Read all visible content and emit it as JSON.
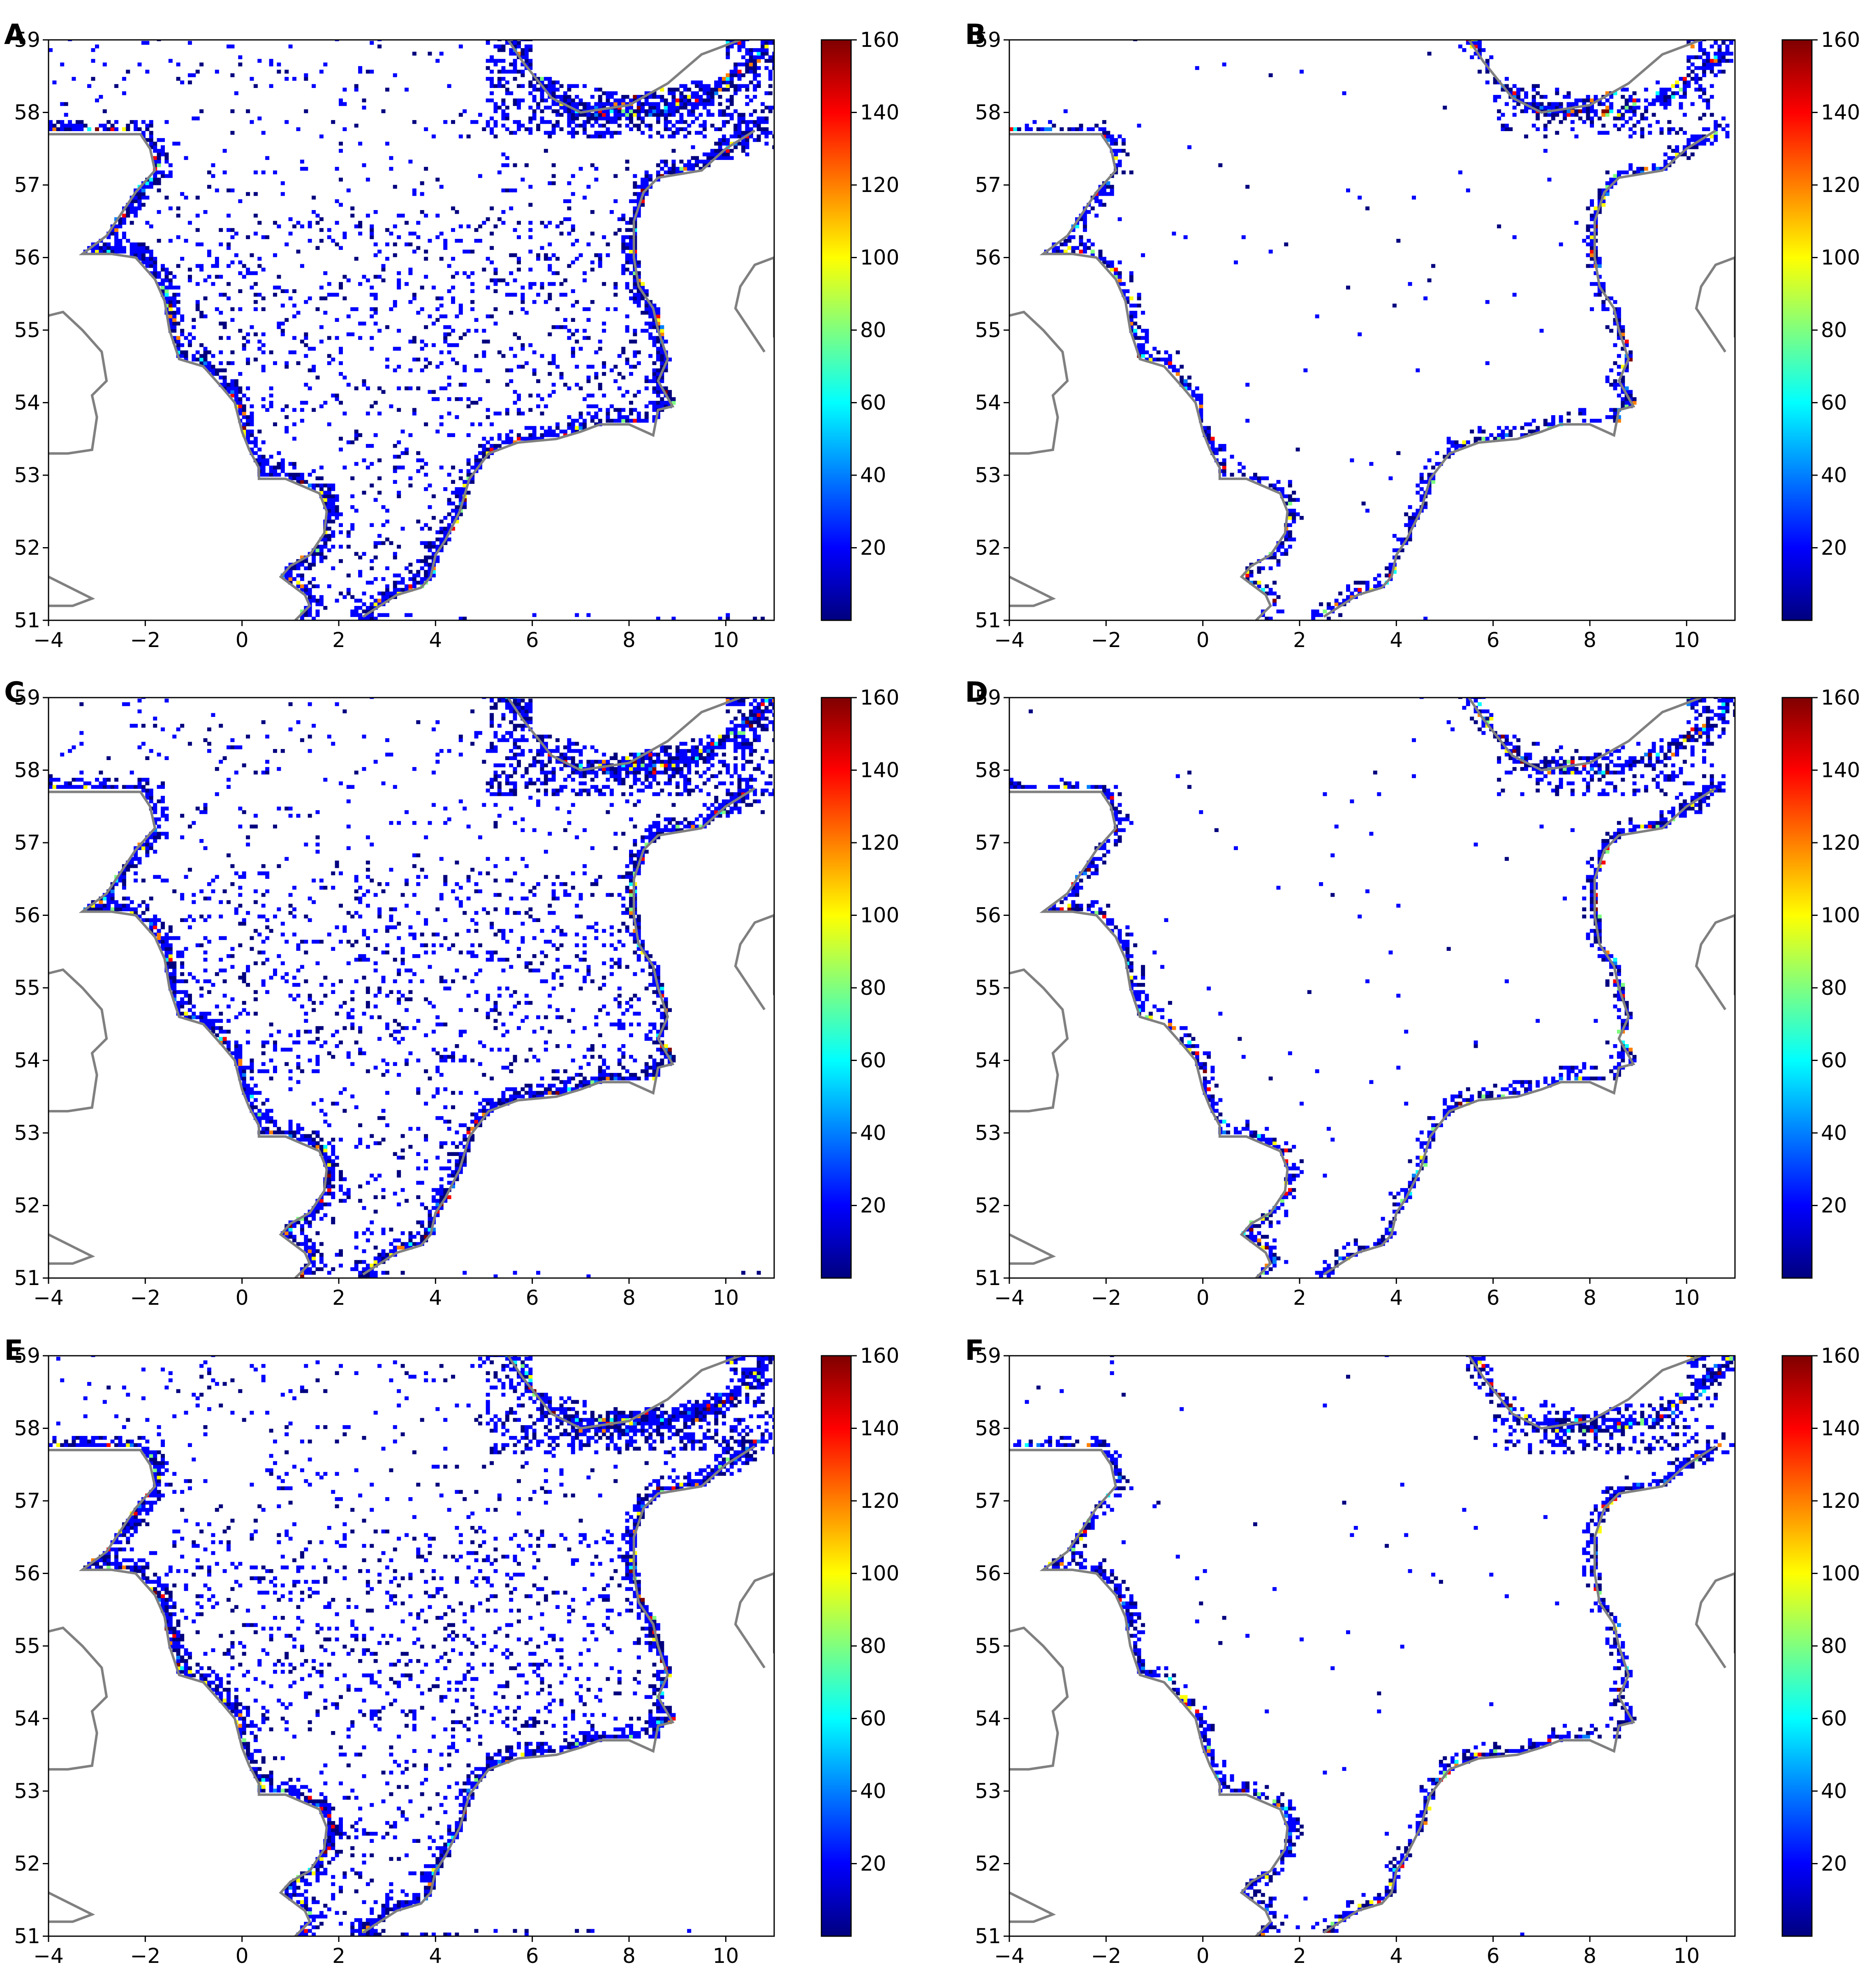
{
  "figure": {
    "panels": [
      {
        "id": "A",
        "letter": "A",
        "pattern": "wide"
      },
      {
        "id": "B",
        "letter": "B",
        "pattern": "coastal"
      },
      {
        "id": "C",
        "letter": "C",
        "pattern": "wide"
      },
      {
        "id": "D",
        "letter": "D",
        "pattern": "coastal"
      },
      {
        "id": "E",
        "letter": "E",
        "pattern": "wide"
      },
      {
        "id": "F",
        "letter": "F",
        "pattern": "coastal"
      }
    ]
  },
  "colors": {
    "coastline": "#808080",
    "colormap": [
      "#00007f",
      "#0000ff",
      "#007fff",
      "#00ffff",
      "#7fff7f",
      "#ffff00",
      "#ff7f00",
      "#ff0000",
      "#7f0000"
    ]
  },
  "chart_data": {
    "type": "heatmap",
    "xlim": [
      -4,
      11
    ],
    "ylim": [
      51,
      59
    ],
    "x_ticks": [
      "−4",
      "−2",
      "0",
      "2",
      "4",
      "6",
      "8",
      "10"
    ],
    "x_tick_values": [
      -4,
      -2,
      0,
      2,
      4,
      6,
      8,
      10
    ],
    "y_ticks": [
      "51",
      "52",
      "53",
      "54",
      "55",
      "56",
      "57",
      "58",
      "59"
    ],
    "y_tick_values": [
      51,
      52,
      53,
      54,
      55,
      56,
      57,
      58,
      59
    ],
    "colorbar_range": [
      0,
      160
    ],
    "colorbar_ticks": [
      "20",
      "40",
      "60",
      "80",
      "100",
      "120",
      "140",
      "160"
    ],
    "colorbar_tick_values": [
      20,
      40,
      60,
      80,
      100,
      120,
      140,
      160
    ],
    "coastlines": {
      "uk_east": [
        [
          -4,
          57.7
        ],
        [
          -3.0,
          57.7
        ],
        [
          -2.1,
          57.7
        ],
        [
          -1.9,
          57.5
        ],
        [
          -1.8,
          57.2
        ],
        [
          -2.2,
          56.9
        ],
        [
          -2.6,
          56.5
        ],
        [
          -2.8,
          56.3
        ],
        [
          -3.3,
          56.05
        ],
        [
          -2.7,
          56.05
        ],
        [
          -2.2,
          56.0
        ],
        [
          -1.8,
          55.7
        ],
        [
          -1.6,
          55.4
        ],
        [
          -1.5,
          55.0
        ],
        [
          -1.3,
          54.6
        ],
        [
          -0.8,
          54.5
        ],
        [
          -0.4,
          54.2
        ],
        [
          -0.15,
          54.0
        ],
        [
          0.0,
          53.6
        ],
        [
          0.15,
          53.35
        ],
        [
          0.35,
          53.1
        ],
        [
          0.35,
          52.95
        ],
        [
          0.9,
          52.95
        ],
        [
          1.6,
          52.75
        ],
        [
          1.75,
          52.5
        ],
        [
          1.7,
          52.2
        ],
        [
          1.4,
          51.9
        ],
        [
          1.0,
          51.75
        ],
        [
          0.8,
          51.6
        ],
        [
          1.3,
          51.35
        ],
        [
          1.4,
          51.2
        ],
        [
          1.1,
          51.0
        ]
      ],
      "nl_de_dk": [
        [
          2.5,
          51.05
        ],
        [
          3.2,
          51.35
        ],
        [
          3.7,
          51.45
        ],
        [
          3.9,
          51.6
        ],
        [
          4.0,
          51.9
        ],
        [
          4.2,
          52.1
        ],
        [
          4.5,
          52.5
        ],
        [
          4.7,
          52.95
        ],
        [
          5.1,
          53.3
        ],
        [
          5.7,
          53.45
        ],
        [
          6.5,
          53.5
        ],
        [
          7.0,
          53.6
        ],
        [
          7.4,
          53.7
        ],
        [
          8.0,
          53.7
        ],
        [
          8.5,
          53.55
        ],
        [
          8.6,
          53.9
        ],
        [
          8.9,
          53.95
        ],
        [
          8.6,
          54.3
        ],
        [
          8.8,
          54.6
        ],
        [
          8.6,
          55.0
        ],
        [
          8.5,
          55.3
        ],
        [
          8.2,
          55.6
        ],
        [
          8.1,
          56.0
        ],
        [
          8.1,
          56.5
        ],
        [
          8.3,
          56.9
        ],
        [
          8.6,
          57.1
        ],
        [
          9.5,
          57.2
        ],
        [
          10.0,
          57.5
        ],
        [
          10.6,
          57.75
        ]
      ],
      "norway": [
        [
          5.5,
          59.0
        ],
        [
          5.8,
          58.7
        ],
        [
          6.4,
          58.2
        ],
        [
          7.0,
          58.0
        ],
        [
          8.0,
          58.1
        ],
        [
          8.8,
          58.4
        ],
        [
          9.5,
          58.8
        ],
        [
          10.3,
          59.0
        ]
      ],
      "ireland": [
        [
          -4,
          53.3
        ],
        [
          -3.6,
          53.3
        ],
        [
          -3.1,
          53.35
        ],
        [
          -3.0,
          53.8
        ],
        [
          -3.1,
          54.1
        ],
        [
          -2.8,
          54.3
        ],
        [
          -2.9,
          54.7
        ],
        [
          -3.3,
          55.0
        ],
        [
          -3.7,
          55.25
        ],
        [
          -4,
          55.2
        ]
      ],
      "wales": [
        [
          -4,
          51.6
        ],
        [
          -3.4,
          51.4
        ],
        [
          -3.1,
          51.3
        ],
        [
          -3.5,
          51.2
        ],
        [
          -4,
          51.2
        ]
      ],
      "denmark_islands": [
        [
          10.8,
          54.7
        ],
        [
          10.5,
          55.0
        ],
        [
          10.2,
          55.3
        ],
        [
          10.3,
          55.6
        ],
        [
          10.6,
          55.9
        ],
        [
          11.0,
          56.0
        ],
        [
          11.0,
          54.9
        ]
      ]
    }
  }
}
